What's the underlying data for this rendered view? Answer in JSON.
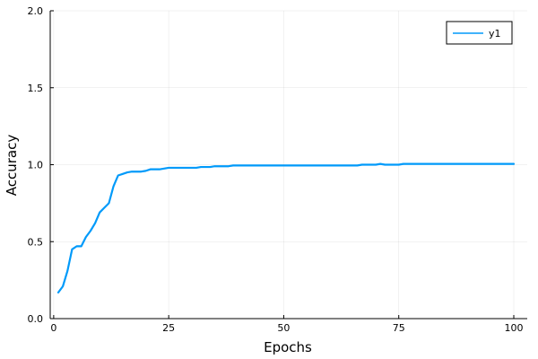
{
  "chart_data": {
    "type": "line",
    "xlabel": "Epochs",
    "ylabel": "Accuracy",
    "xlim": [
      1,
      100
    ],
    "ylim": [
      0.0,
      2.0
    ],
    "xticks": [
      0,
      25,
      50,
      75,
      100
    ],
    "yticks": [
      0.0,
      0.5,
      1.0,
      1.5,
      2.0
    ],
    "xtick_labels": [
      "0",
      "25",
      "50",
      "75",
      "100"
    ],
    "ytick_labels": [
      "0.0",
      "0.5",
      "1.0",
      "1.5",
      "2.0"
    ],
    "grid": true,
    "legend": "top-right",
    "series": [
      {
        "name": "y1",
        "color": "#009AFA",
        "x": [
          1,
          2,
          3,
          4,
          5,
          6,
          7,
          8,
          9,
          10,
          11,
          12,
          13,
          14,
          15,
          16,
          17,
          18,
          19,
          20,
          21,
          22,
          23,
          24,
          25,
          26,
          27,
          28,
          29,
          30,
          31,
          32,
          33,
          34,
          35,
          36,
          37,
          38,
          39,
          40,
          41,
          42,
          43,
          44,
          45,
          46,
          47,
          48,
          49,
          50,
          51,
          52,
          53,
          54,
          55,
          56,
          57,
          58,
          59,
          60,
          61,
          62,
          63,
          64,
          65,
          66,
          67,
          68,
          69,
          70,
          71,
          72,
          73,
          74,
          75,
          76,
          77,
          78,
          79,
          80,
          81,
          82,
          83,
          84,
          85,
          86,
          87,
          88,
          89,
          90,
          91,
          92,
          93,
          94,
          95,
          96,
          97,
          98,
          99,
          100
        ],
        "values": [
          0.17,
          0.21,
          0.31,
          0.45,
          0.47,
          0.47,
          0.53,
          0.57,
          0.62,
          0.69,
          0.72,
          0.75,
          0.86,
          0.93,
          0.94,
          0.95,
          0.955,
          0.955,
          0.955,
          0.96,
          0.97,
          0.97,
          0.97,
          0.975,
          0.98,
          0.98,
          0.98,
          0.98,
          0.98,
          0.98,
          0.98,
          0.985,
          0.985,
          0.985,
          0.99,
          0.99,
          0.99,
          0.99,
          0.995,
          0.995,
          0.995,
          0.995,
          0.995,
          0.995,
          0.995,
          0.995,
          0.995,
          0.995,
          0.995,
          0.995,
          0.995,
          0.995,
          0.995,
          0.995,
          0.995,
          0.995,
          0.995,
          0.995,
          0.995,
          0.995,
          0.995,
          0.995,
          0.995,
          0.995,
          0.995,
          0.995,
          1.0,
          1.0,
          1.0,
          1.0,
          1.005,
          1.0,
          1.0,
          1.0,
          1.0,
          1.005,
          1.005,
          1.005,
          1.005,
          1.005,
          1.005,
          1.005,
          1.005,
          1.005,
          1.005,
          1.005,
          1.005,
          1.005,
          1.005,
          1.005,
          1.005,
          1.005,
          1.005,
          1.005,
          1.005,
          1.005,
          1.005,
          1.005,
          1.005,
          1.005
        ]
      }
    ]
  }
}
